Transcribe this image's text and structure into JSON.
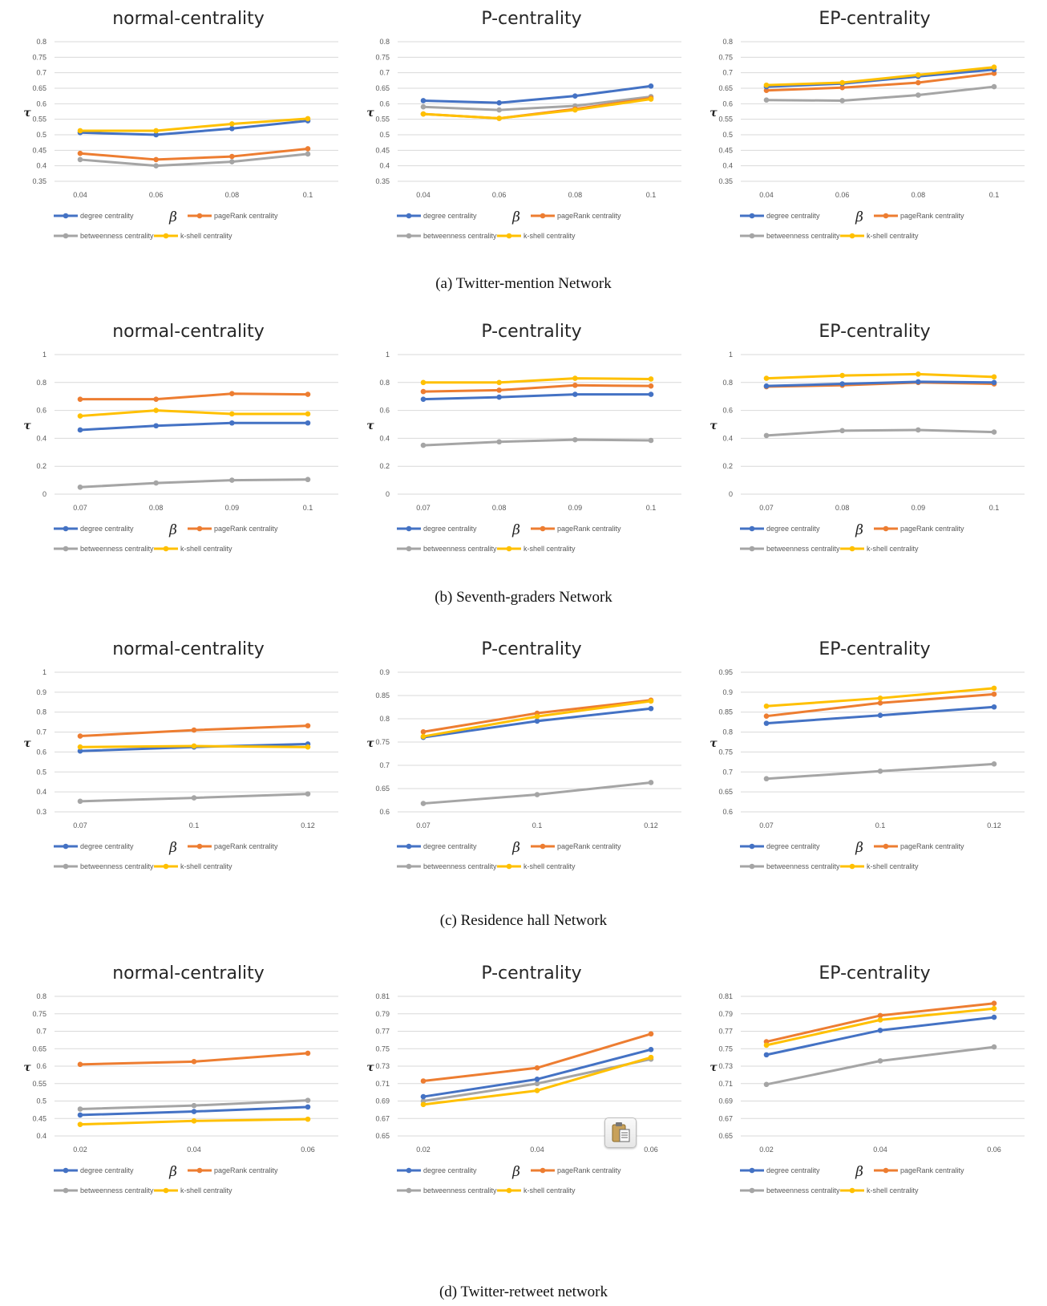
{
  "colors": {
    "degree": "#4472C4",
    "pagerank": "#ED7D31",
    "betweenness": "#A5A5A5",
    "kshell": "#FFC000",
    "grid": "#D9D9D9",
    "text": "#595959",
    "title": "#262626"
  },
  "series_names": [
    "degree centrality",
    "pageRank centrality",
    "betweenness centrality",
    "k-shell centrality"
  ],
  "icons": {
    "paste": "clipboard-paste-icon"
  },
  "rows": [
    {
      "caption": "(a) Twitter-mention Network"
    },
    {
      "caption": "(b) Seventh-graders Network"
    },
    {
      "caption": "(c) Residence hall Network"
    },
    {
      "caption": "(d) Twitter-retweet network"
    }
  ],
  "chart_data": [
    {
      "type": "line",
      "title": "normal-centrality",
      "xlabel": "β",
      "ylabel": "τ",
      "categories": [
        "0.04",
        "0.06",
        "0.08",
        "0.1"
      ],
      "yticks": [
        "0.35",
        "0.4",
        "0.45",
        "0.5",
        "0.55",
        "0.6",
        "0.65",
        "0.7",
        "0.75",
        "0.8"
      ],
      "ylim": [
        0.35,
        0.8
      ],
      "series": [
        {
          "name": "degree centrality",
          "values": [
            0.507,
            0.5,
            0.52,
            0.545
          ]
        },
        {
          "name": "pageRank centrality",
          "values": [
            0.44,
            0.42,
            0.43,
            0.455
          ]
        },
        {
          "name": "betweenness centrality",
          "values": [
            0.42,
            0.4,
            0.413,
            0.438
          ]
        },
        {
          "name": "k-shell centrality",
          "values": [
            0.513,
            0.513,
            0.535,
            0.552
          ]
        }
      ]
    },
    {
      "type": "line",
      "title": "P-centrality",
      "xlabel": "β",
      "ylabel": "τ",
      "categories": [
        "0.04",
        "0.06",
        "0.08",
        "0.1"
      ],
      "yticks": [
        "0.35",
        "0.4",
        "0.45",
        "0.5",
        "0.55",
        "0.6",
        "0.65",
        "0.7",
        "0.75",
        "0.8"
      ],
      "ylim": [
        0.35,
        0.8
      ],
      "series": [
        {
          "name": "degree centrality",
          "values": [
            0.61,
            0.603,
            0.625,
            0.657
          ]
        },
        {
          "name": "pageRank centrality",
          "values": [
            0.567,
            0.553,
            0.583,
            0.618
          ]
        },
        {
          "name": "betweenness centrality",
          "values": [
            0.59,
            0.58,
            0.593,
            0.623
          ]
        },
        {
          "name": "k-shell centrality",
          "values": [
            0.567,
            0.553,
            0.58,
            0.615
          ]
        }
      ]
    },
    {
      "type": "line",
      "title": "EP-centrality",
      "xlabel": "β",
      "ylabel": "τ",
      "categories": [
        "0.04",
        "0.06",
        "0.08",
        "0.1"
      ],
      "yticks": [
        "0.35",
        "0.4",
        "0.45",
        "0.5",
        "0.55",
        "0.6",
        "0.65",
        "0.7",
        "0.75",
        "0.8"
      ],
      "ylim": [
        0.35,
        0.8
      ],
      "series": [
        {
          "name": "degree centrality",
          "values": [
            0.655,
            0.665,
            0.688,
            0.71
          ]
        },
        {
          "name": "pageRank centrality",
          "values": [
            0.643,
            0.652,
            0.668,
            0.698
          ]
        },
        {
          "name": "betweenness centrality",
          "values": [
            0.612,
            0.61,
            0.628,
            0.655
          ]
        },
        {
          "name": "k-shell centrality",
          "values": [
            0.66,
            0.668,
            0.693,
            0.718
          ]
        }
      ]
    },
    {
      "type": "line",
      "title": "normal-centrality",
      "xlabel": "β",
      "ylabel": "τ",
      "categories": [
        "0.07",
        "0.08",
        "0.09",
        "0.1"
      ],
      "yticks": [
        "0",
        "0.2",
        "0.4",
        "0.6",
        "0.8",
        "1"
      ],
      "ylim": [
        0,
        1
      ],
      "series": [
        {
          "name": "degree centrality",
          "values": [
            0.46,
            0.49,
            0.51,
            0.51
          ]
        },
        {
          "name": "pageRank centrality",
          "values": [
            0.68,
            0.68,
            0.72,
            0.715
          ]
        },
        {
          "name": "betweenness centrality",
          "values": [
            0.05,
            0.08,
            0.1,
            0.105
          ]
        },
        {
          "name": "k-shell centrality",
          "values": [
            0.56,
            0.6,
            0.575,
            0.575
          ]
        }
      ]
    },
    {
      "type": "line",
      "title": "P-centrality",
      "xlabel": "β",
      "ylabel": "τ",
      "categories": [
        "0.07",
        "0.08",
        "0.09",
        "0.1"
      ],
      "yticks": [
        "0",
        "0.2",
        "0.4",
        "0.6",
        "0.8",
        "1"
      ],
      "ylim": [
        0,
        1
      ],
      "series": [
        {
          "name": "degree centrality",
          "values": [
            0.68,
            0.695,
            0.715,
            0.715
          ]
        },
        {
          "name": "pageRank centrality",
          "values": [
            0.735,
            0.745,
            0.78,
            0.775
          ]
        },
        {
          "name": "betweenness centrality",
          "values": [
            0.35,
            0.375,
            0.39,
            0.385
          ]
        },
        {
          "name": "k-shell centrality",
          "values": [
            0.8,
            0.8,
            0.83,
            0.825
          ]
        }
      ]
    },
    {
      "type": "line",
      "title": "EP-centrality",
      "xlabel": "β",
      "ylabel": "τ",
      "categories": [
        "0.07",
        "0.08",
        "0.09",
        "0.1"
      ],
      "yticks": [
        "0",
        "0.2",
        "0.4",
        "0.6",
        "0.8",
        "1"
      ],
      "ylim": [
        0,
        1
      ],
      "series": [
        {
          "name": "degree centrality",
          "values": [
            0.775,
            0.79,
            0.805,
            0.8
          ]
        },
        {
          "name": "pageRank centrality",
          "values": [
            0.77,
            0.78,
            0.8,
            0.79
          ]
        },
        {
          "name": "betweenness centrality",
          "values": [
            0.42,
            0.455,
            0.46,
            0.445
          ]
        },
        {
          "name": "k-shell centrality",
          "values": [
            0.83,
            0.85,
            0.86,
            0.84
          ]
        }
      ]
    },
    {
      "type": "line",
      "title": "normal-centrality",
      "xlabel": "β",
      "ylabel": "τ",
      "categories": [
        "0.07",
        "0.1",
        "0.12"
      ],
      "yticks": [
        "0.3",
        "0.4",
        "0.5",
        "0.6",
        "0.7",
        "0.8",
        "0.9",
        "1"
      ],
      "ylim": [
        0.3,
        1
      ],
      "series": [
        {
          "name": "degree centrality",
          "values": [
            0.605,
            0.625,
            0.64
          ]
        },
        {
          "name": "pageRank centrality",
          "values": [
            0.68,
            0.71,
            0.732
          ]
        },
        {
          "name": "betweenness centrality",
          "values": [
            0.353,
            0.37,
            0.39
          ]
        },
        {
          "name": "k-shell centrality",
          "values": [
            0.625,
            0.63,
            0.625
          ]
        }
      ]
    },
    {
      "type": "line",
      "title": "P-centrality",
      "xlabel": "β",
      "ylabel": "τ",
      "categories": [
        "0.07",
        "0.1",
        "0.12"
      ],
      "yticks": [
        "0.6",
        "0.65",
        "0.7",
        "0.75",
        "0.8",
        "0.85",
        "0.9"
      ],
      "ylim": [
        0.6,
        0.9
      ],
      "series": [
        {
          "name": "degree centrality",
          "values": [
            0.76,
            0.795,
            0.822
          ]
        },
        {
          "name": "pageRank centrality",
          "values": [
            0.772,
            0.812,
            0.84
          ]
        },
        {
          "name": "betweenness centrality",
          "values": [
            0.618,
            0.637,
            0.663
          ]
        },
        {
          "name": "k-shell centrality",
          "values": [
            0.762,
            0.805,
            0.838
          ]
        }
      ]
    },
    {
      "type": "line",
      "title": "EP-centrality",
      "xlabel": "β",
      "ylabel": "τ",
      "categories": [
        "0.07",
        "0.1",
        "0.12"
      ],
      "yticks": [
        "0.6",
        "0.65",
        "0.7",
        "0.75",
        "0.8",
        "0.85",
        "0.9",
        "0.95"
      ],
      "ylim": [
        0.6,
        0.95
      ],
      "series": [
        {
          "name": "degree centrality",
          "values": [
            0.822,
            0.842,
            0.863
          ]
        },
        {
          "name": "pageRank centrality",
          "values": [
            0.84,
            0.873,
            0.895
          ]
        },
        {
          "name": "betweenness centrality",
          "values": [
            0.683,
            0.702,
            0.72
          ]
        },
        {
          "name": "k-shell centrality",
          "values": [
            0.865,
            0.885,
            0.91
          ]
        }
      ]
    },
    {
      "type": "line",
      "title": "normal-centrality",
      "xlabel": "β",
      "ylabel": "τ",
      "categories": [
        "0.02",
        "0.04",
        "0.06"
      ],
      "yticks": [
        "0.4",
        "0.45",
        "0.5",
        "0.55",
        "0.6",
        "0.65",
        "0.7",
        "0.75",
        "0.8"
      ],
      "ylim": [
        0.4,
        0.8
      ],
      "series": [
        {
          "name": "degree centrality",
          "values": [
            0.46,
            0.47,
            0.483
          ]
        },
        {
          "name": "pageRank centrality",
          "values": [
            0.605,
            0.613,
            0.637
          ]
        },
        {
          "name": "betweenness centrality",
          "values": [
            0.477,
            0.487,
            0.502
          ]
        },
        {
          "name": "k-shell centrality",
          "values": [
            0.433,
            0.443,
            0.448
          ]
        }
      ]
    },
    {
      "type": "line",
      "title": "P-centrality",
      "xlabel": "β",
      "ylabel": "τ",
      "categories": [
        "0.02",
        "0.04",
        "0.06"
      ],
      "yticks": [
        "0.65",
        "0.67",
        "0.69",
        "0.71",
        "0.73",
        "0.75",
        "0.77",
        "0.79",
        "0.81"
      ],
      "ylim": [
        0.65,
        0.81
      ],
      "series": [
        {
          "name": "degree centrality",
          "values": [
            0.695,
            0.715,
            0.749
          ]
        },
        {
          "name": "pageRank centrality",
          "values": [
            0.713,
            0.728,
            0.767
          ]
        },
        {
          "name": "betweenness centrality",
          "values": [
            0.69,
            0.71,
            0.738
          ]
        },
        {
          "name": "k-shell centrality",
          "values": [
            0.686,
            0.702,
            0.74
          ]
        }
      ]
    },
    {
      "type": "line",
      "title": "EP-centrality",
      "xlabel": "β",
      "ylabel": "τ",
      "categories": [
        "0.02",
        "0.04",
        "0.06"
      ],
      "yticks": [
        "0.65",
        "0.67",
        "0.69",
        "0.71",
        "0.73",
        "0.75",
        "0.77",
        "0.79",
        "0.81"
      ],
      "ylim": [
        0.65,
        0.81
      ],
      "series": [
        {
          "name": "degree centrality",
          "values": [
            0.743,
            0.771,
            0.786
          ]
        },
        {
          "name": "pageRank centrality",
          "values": [
            0.758,
            0.788,
            0.802
          ]
        },
        {
          "name": "betweenness centrality",
          "values": [
            0.709,
            0.736,
            0.752
          ]
        },
        {
          "name": "k-shell centrality",
          "values": [
            0.754,
            0.783,
            0.796
          ]
        }
      ]
    }
  ]
}
